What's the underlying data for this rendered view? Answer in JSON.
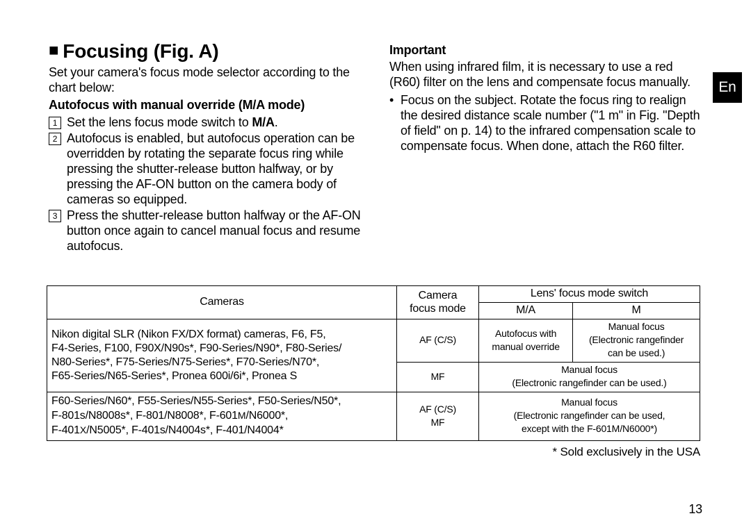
{
  "tab": "En",
  "heading": "Focusing (Fig. A)",
  "intro": "Set your camera's focus mode selector according to the chart below:",
  "subhead": "Autofocus with manual override (M/A mode)",
  "steps": [
    {
      "n": "1",
      "before": "Set the lens focus mode switch to ",
      "bold": "M/A",
      "after": "."
    },
    {
      "n": "2",
      "text": "Autofocus is enabled, but autofocus operation can be overridden by rotating the separate focus ring while pressing the shutter-release button halfway, or by pressing the AF-ON button on the camera body of cameras so equipped."
    },
    {
      "n": "3",
      "text": "Press the shutter-release button halfway or the AF-ON button once again to cancel manual focus and resume autofocus."
    }
  ],
  "important_label": "Important",
  "important_text": "When using infrared film, it is necessary to use a red (R60) filter on the lens and compensate focus manually.",
  "bullet_text": "Focus on the subject. Rotate the focus ring to realign the desired distance scale number (\"1 m\" in Fig. \"Depth of field\" on p. 14) to the infrared compensation scale to compensate focus. When done, attach the R60 filter.",
  "table": {
    "head": {
      "cameras": "Cameras",
      "camera_mode": "Camera\nfocus mode",
      "lens_switch": "Lens' focus mode switch",
      "ma": "M/A",
      "m": "M"
    },
    "rows": [
      {
        "cameras": "Nikon digital SLR (Nikon FX/DX format) cameras, F6, F5,\nF4-Series, F100, F90X/N90s*, F90-Series/N90*, F80-Series/\nN80-Series*, F75-Series/N75-Series*, F70-Series/N70*,\nF65-Series/N65-Series*, Pronea 600i/6i*, Pronea S",
        "mode1": "AF (C/S)",
        "ma1": "Autofocus with\nmanual override",
        "m1": "Manual focus\n(Electronic rangefinder\ncan be used.)",
        "mode2": "MF",
        "merged2": "Manual focus\n(Electronic rangefinder can be used.)"
      },
      {
        "cameras": "F60-Series/N60*, F55-Series/N55-Series*, F50-Series/N50*,\nF-801s/N8008s*, F-801/N8008*, F-601M/N6000*,\nF-401X/N5005*, F-401s/N4004s*, F-401/N4004*",
        "mode": "AF (C/S)\nMF",
        "merged": "Manual focus\n(Electronic rangefinder can be used,\nexcept with the F-601M/N6000*)"
      }
    ],
    "note": "* Sold exclusively in the USA"
  },
  "pagenum": "13"
}
